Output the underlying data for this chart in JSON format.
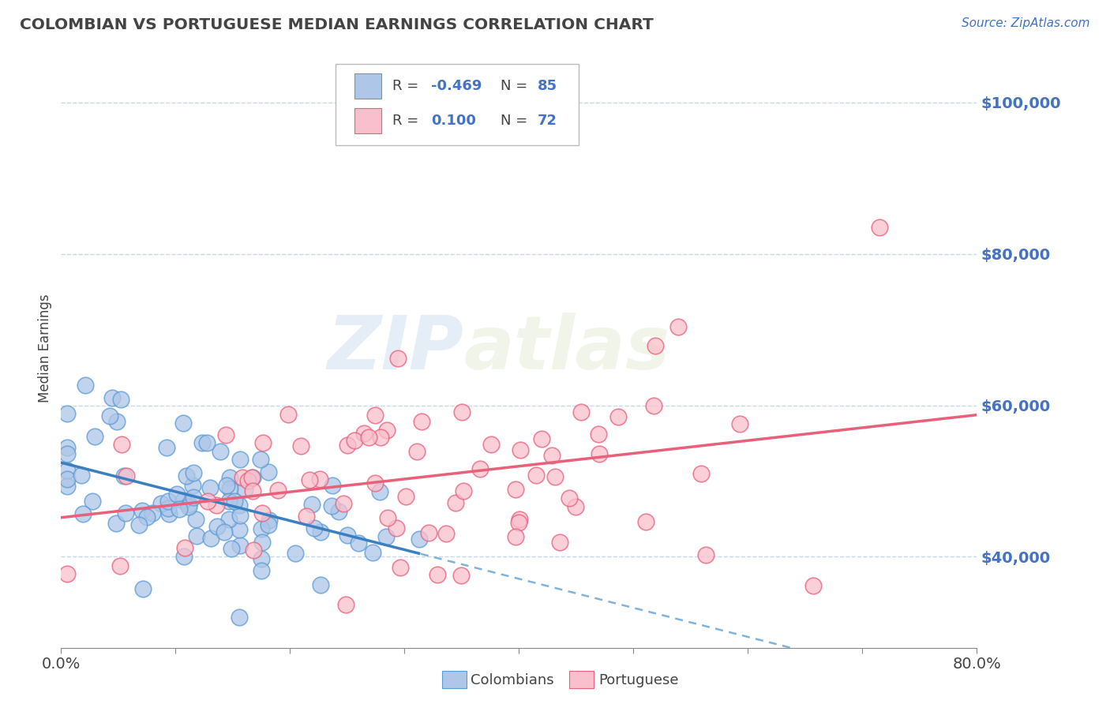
{
  "title": "COLOMBIAN VS PORTUGUESE MEDIAN EARNINGS CORRELATION CHART",
  "source": "Source: ZipAtlas.com",
  "ylabel": "Median Earnings",
  "xlim": [
    0.0,
    0.8
  ],
  "ylim": [
    28000,
    107000
  ],
  "yticks": [
    40000,
    60000,
    80000,
    100000
  ],
  "ytick_labels": [
    "$40,000",
    "$60,000",
    "$80,000",
    "$100,000"
  ],
  "col_color": "#aec6e8",
  "col_edge_color": "#5b9bd5",
  "port_color": "#f9bfcc",
  "port_edge_color": "#e8607a",
  "port_line_color": "#e8607a",
  "col_line_color": "#3a7fc1",
  "col_line_dash_color": "#7fb3dd",
  "col_R": -0.469,
  "col_N": 85,
  "port_R": 0.1,
  "port_N": 72,
  "watermark_zip": "ZIP",
  "watermark_atlas": "atlas",
  "background_color": "#ffffff",
  "grid_color": "#b8cfe8",
  "title_color": "#444444",
  "source_color": "#4472c4",
  "ytick_color": "#4472c4",
  "xtick_color": "#444444",
  "legend_label_color": "#444444",
  "legend_value_color": "#4472c4"
}
